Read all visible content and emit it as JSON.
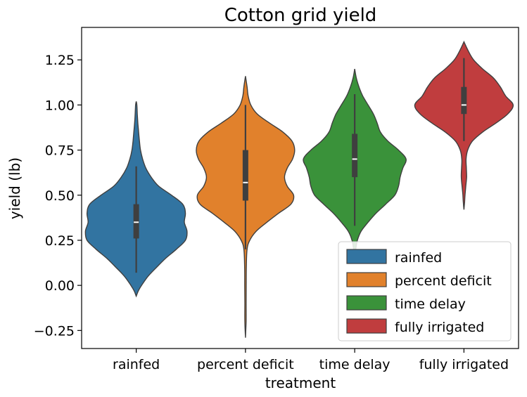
{
  "chart_data": {
    "type": "violin",
    "title": "Cotton grid yield",
    "xlabel": "treatment",
    "ylabel": "yield (lb)",
    "ylim": [
      -0.35,
      1.43
    ],
    "yticks": [
      -0.25,
      0.0,
      0.25,
      0.5,
      0.75,
      1.0,
      1.25
    ],
    "ytick_labels": [
      "−0.25",
      "0.00",
      "0.25",
      "0.50",
      "0.75",
      "1.00",
      "1.25"
    ],
    "categories": [
      "rainfed",
      "percent deficit",
      "time delay",
      "fully irrigated"
    ],
    "legend": {
      "position": "lower-right",
      "entries": [
        "rainfed",
        "percent deficit",
        "time delay",
        "fully irrigated"
      ]
    },
    "series": [
      {
        "name": "rainfed",
        "color": "#3274a1",
        "min": -0.06,
        "max": 1.02,
        "q1": 0.26,
        "median": 0.35,
        "q3": 0.45,
        "whisker_low": 0.07,
        "whisker_high": 0.66,
        "profile": [
          [
            -0.06,
            0.0
          ],
          [
            -0.03,
            0.04
          ],
          [
            0.0,
            0.1
          ],
          [
            0.05,
            0.22
          ],
          [
            0.1,
            0.38
          ],
          [
            0.15,
            0.55
          ],
          [
            0.2,
            0.75
          ],
          [
            0.25,
            0.92
          ],
          [
            0.3,
            0.95
          ],
          [
            0.35,
            0.9
          ],
          [
            0.4,
            0.92
          ],
          [
            0.45,
            0.87
          ],
          [
            0.5,
            0.66
          ],
          [
            0.55,
            0.42
          ],
          [
            0.6,
            0.28
          ],
          [
            0.65,
            0.18
          ],
          [
            0.7,
            0.12
          ],
          [
            0.75,
            0.08
          ],
          [
            0.8,
            0.06
          ],
          [
            0.85,
            0.045
          ],
          [
            0.9,
            0.03
          ],
          [
            0.95,
            0.02
          ],
          [
            1.0,
            0.012
          ],
          [
            1.02,
            0.0
          ]
        ]
      },
      {
        "name": "percent deficit",
        "color": "#e1812c",
        "min": -0.29,
        "max": 1.16,
        "q1": 0.47,
        "median": 0.57,
        "q3": 0.75,
        "whisker_low": 0.2,
        "whisker_high": 1.0,
        "profile": [
          [
            -0.29,
            0.0
          ],
          [
            -0.2,
            0.012
          ],
          [
            -0.1,
            0.012
          ],
          [
            0.0,
            0.014
          ],
          [
            0.1,
            0.016
          ],
          [
            0.2,
            0.03
          ],
          [
            0.25,
            0.08
          ],
          [
            0.3,
            0.2
          ],
          [
            0.35,
            0.4
          ],
          [
            0.4,
            0.62
          ],
          [
            0.45,
            0.85
          ],
          [
            0.5,
            0.9
          ],
          [
            0.55,
            0.78
          ],
          [
            0.6,
            0.73
          ],
          [
            0.65,
            0.78
          ],
          [
            0.7,
            0.88
          ],
          [
            0.75,
            0.92
          ],
          [
            0.8,
            0.87
          ],
          [
            0.85,
            0.7
          ],
          [
            0.9,
            0.45
          ],
          [
            0.95,
            0.22
          ],
          [
            1.0,
            0.1
          ],
          [
            1.05,
            0.05
          ],
          [
            1.1,
            0.03
          ],
          [
            1.16,
            0.0
          ]
        ]
      },
      {
        "name": "time delay",
        "color": "#3a923a",
        "min": 0.16,
        "max": 1.2,
        "q1": 0.6,
        "median": 0.7,
        "q3": 0.84,
        "whisker_low": 0.33,
        "whisker_high": 1.06,
        "profile": [
          [
            0.16,
            0.0
          ],
          [
            0.2,
            0.02
          ],
          [
            0.25,
            0.05
          ],
          [
            0.3,
            0.12
          ],
          [
            0.35,
            0.25
          ],
          [
            0.4,
            0.4
          ],
          [
            0.45,
            0.58
          ],
          [
            0.5,
            0.75
          ],
          [
            0.55,
            0.82
          ],
          [
            0.6,
            0.85
          ],
          [
            0.65,
            0.9
          ],
          [
            0.7,
            0.96
          ],
          [
            0.75,
            0.82
          ],
          [
            0.8,
            0.62
          ],
          [
            0.85,
            0.48
          ],
          [
            0.9,
            0.42
          ],
          [
            0.95,
            0.35
          ],
          [
            1.0,
            0.25
          ],
          [
            1.05,
            0.15
          ],
          [
            1.1,
            0.08
          ],
          [
            1.15,
            0.03
          ],
          [
            1.2,
            0.0
          ]
        ]
      },
      {
        "name": "fully irrigated",
        "color": "#c03d3e",
        "min": 0.42,
        "max": 1.35,
        "q1": 0.95,
        "median": 1.0,
        "q3": 1.1,
        "whisker_low": 0.8,
        "whisker_high": 1.26,
        "profile": [
          [
            0.42,
            0.0
          ],
          [
            0.46,
            0.012
          ],
          [
            0.5,
            0.02
          ],
          [
            0.55,
            0.035
          ],
          [
            0.6,
            0.05
          ],
          [
            0.65,
            0.045
          ],
          [
            0.7,
            0.04
          ],
          [
            0.75,
            0.07
          ],
          [
            0.8,
            0.16
          ],
          [
            0.85,
            0.35
          ],
          [
            0.9,
            0.6
          ],
          [
            0.95,
            0.82
          ],
          [
            1.0,
            0.92
          ],
          [
            1.05,
            0.78
          ],
          [
            1.1,
            0.68
          ],
          [
            1.15,
            0.55
          ],
          [
            1.2,
            0.35
          ],
          [
            1.25,
            0.18
          ],
          [
            1.3,
            0.08
          ],
          [
            1.35,
            0.0
          ]
        ]
      }
    ]
  }
}
